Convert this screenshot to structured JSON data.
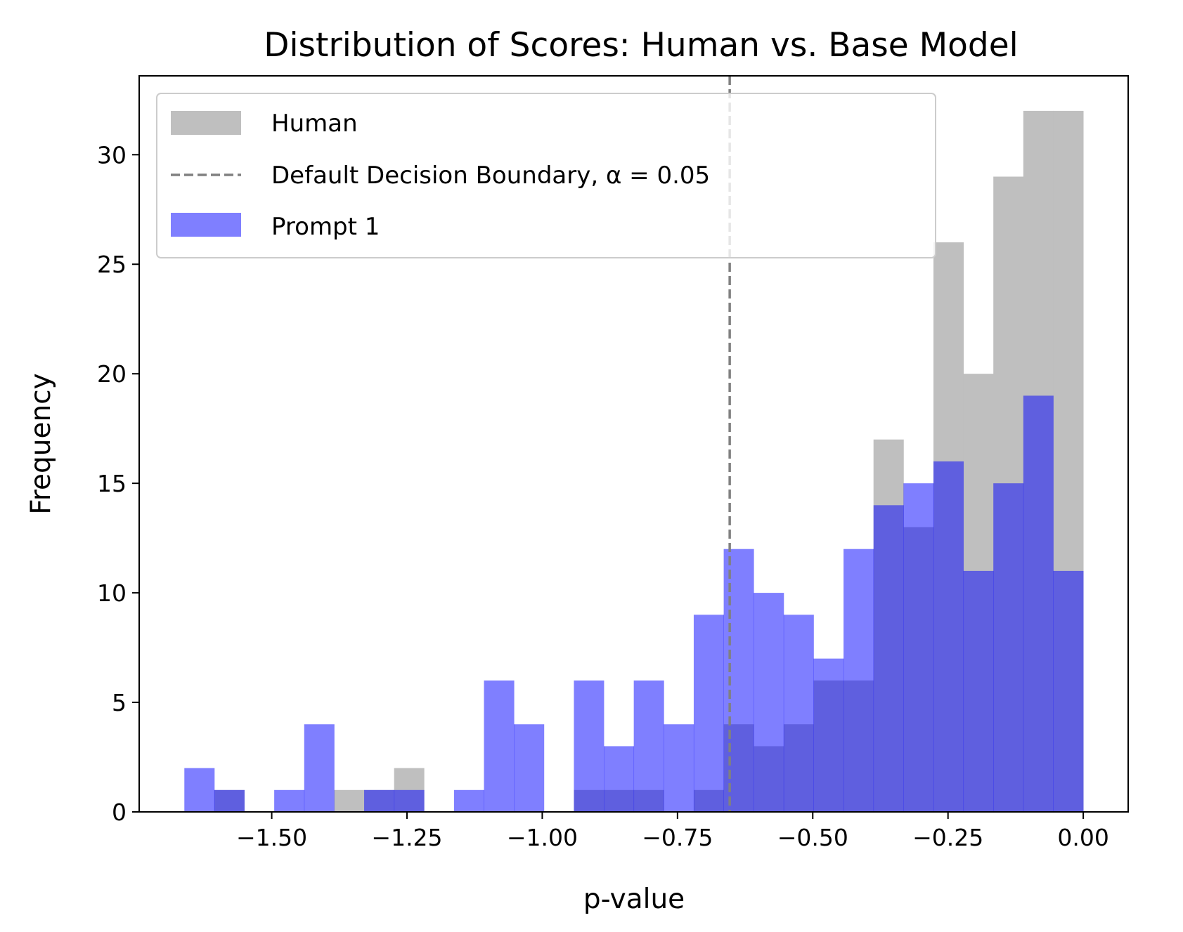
{
  "chart_data": {
    "type": "histogram",
    "title": "Distribution of Scores: Human vs. Base Model",
    "xlabel": "p-value",
    "ylabel": "Frequency",
    "xlim": [
      -1.745,
      0.083
    ],
    "ylim": [
      0,
      33.6
    ],
    "xticks": [
      {
        "value": -1.5,
        "label": "−1.50"
      },
      {
        "value": -1.25,
        "label": "−1.25"
      },
      {
        "value": -1.0,
        "label": "−1.00"
      },
      {
        "value": -0.75,
        "label": "−0.75"
      },
      {
        "value": -0.5,
        "label": "−0.50"
      },
      {
        "value": -0.25,
        "label": "−0.25"
      },
      {
        "value": 0.0,
        "label": "0.00"
      }
    ],
    "yticks": [
      {
        "value": 0,
        "label": "0"
      },
      {
        "value": 5,
        "label": "5"
      },
      {
        "value": 10,
        "label": "10"
      },
      {
        "value": 15,
        "label": "15"
      },
      {
        "value": 20,
        "label": "20"
      },
      {
        "value": 25,
        "label": "25"
      },
      {
        "value": 30,
        "label": "30"
      }
    ],
    "grid": false,
    "legend_position": "upper-left",
    "bin_edges": [
      -1.6615,
      -1.6061,
      -1.5507,
      -1.4954,
      -1.44,
      -1.3846,
      -1.3292,
      -1.2738,
      -1.2185,
      -1.1631,
      -1.1077,
      -1.0523,
      -0.9969,
      -0.9415,
      -0.8862,
      -0.8308,
      -0.7754,
      -0.72,
      -0.6646,
      -0.6092,
      -0.5538,
      -0.4985,
      -0.4431,
      -0.3877,
      -0.3323,
      -0.2769,
      -0.2215,
      -0.1662,
      -0.1108,
      -0.0554,
      0.0
    ],
    "series": [
      {
        "name": "Human",
        "color": "#bfbfbf",
        "counts": [
          0,
          1,
          0,
          0,
          0,
          1,
          1,
          2,
          0,
          0,
          0,
          0,
          0,
          1,
          1,
          1,
          0,
          1,
          4,
          3,
          4,
          6,
          6,
          17,
          13,
          26,
          20,
          29,
          32,
          32
        ]
      },
      {
        "name": "Prompt 1",
        "color": "#0000ff",
        "opacity": 0.5,
        "counts": [
          2,
          1,
          0,
          1,
          4,
          0,
          1,
          1,
          0,
          1,
          6,
          4,
          0,
          6,
          3,
          6,
          4,
          9,
          12,
          10,
          9,
          7,
          12,
          14,
          15,
          16,
          11,
          15,
          19,
          11
        ]
      }
    ],
    "reference_line": {
      "label": "Default Decision Boundary, α = 0.05",
      "x": -0.6535,
      "color": "#808080",
      "style": "dashed"
    }
  }
}
